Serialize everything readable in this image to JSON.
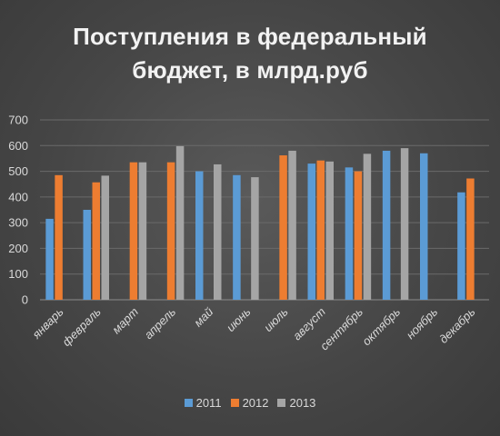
{
  "chart_data": {
    "type": "bar",
    "title_lines": [
      "Поступления в федеральный",
      "бюджет, в млрд.руб"
    ],
    "categories": [
      "январь",
      "февраль",
      "март",
      "апрель",
      "май",
      "июнь",
      "июль",
      "август",
      "сентябрь",
      "октябрь",
      "ноябрь",
      "декабрь"
    ],
    "series": [
      {
        "name": "2011",
        "color": "#5b9bd5",
        "values": [
          315,
          350,
          null,
          null,
          500,
          485,
          null,
          530,
          515,
          580,
          570,
          418
        ]
      },
      {
        "name": "2012",
        "color": "#ed7d31",
        "values": [
          485,
          457,
          535,
          535,
          null,
          null,
          562,
          542,
          500,
          null,
          null,
          472
        ]
      },
      {
        "name": "2013",
        "color": "#a5a5a5",
        "values": [
          null,
          483,
          535,
          598,
          527,
          477,
          580,
          538,
          568,
          590,
          null,
          null
        ]
      }
    ],
    "ylim": [
      0,
      700
    ],
    "yticks": [
      0,
      100,
      200,
      300,
      400,
      500,
      600,
      700
    ],
    "grid": true,
    "legend_position": "bottom"
  }
}
